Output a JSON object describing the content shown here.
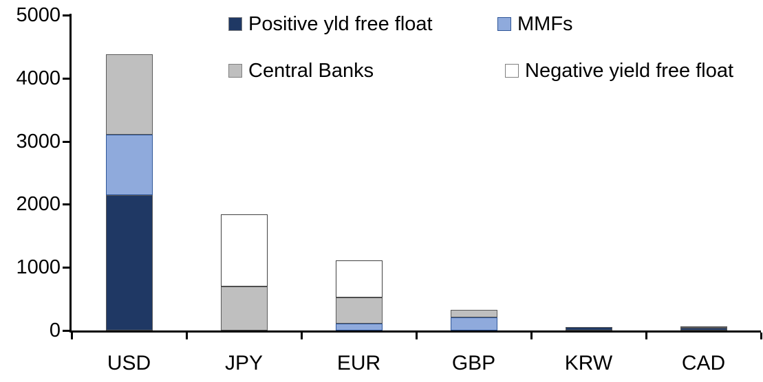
{
  "chart_data": {
    "type": "bar",
    "stacked": true,
    "title": "",
    "xlabel": "",
    "ylabel": "",
    "categories": [
      "USD",
      "JPY",
      "EUR",
      "GBP",
      "KRW",
      "CAD"
    ],
    "series": [
      {
        "name": "Positive yld free float",
        "color": "#1F3864",
        "border_color": "#595959",
        "values": [
          2150,
          0,
          0,
          0,
          50,
          40
        ]
      },
      {
        "name": "MMFs",
        "color": "#8FAADC",
        "border_color": "#2E5597",
        "values": [
          950,
          0,
          110,
          210,
          0,
          0
        ]
      },
      {
        "name": "Central Banks",
        "color": "#BFBFBF",
        "border_color": "#595959",
        "values": [
          1280,
          700,
          410,
          120,
          0,
          30
        ]
      },
      {
        "name": "Negative yield free float",
        "color": "#FFFFFF",
        "border_color": "#404040",
        "values": [
          0,
          1140,
          590,
          0,
          0,
          0
        ]
      }
    ],
    "ylim": [
      0,
      5000
    ],
    "yticks": [
      0,
      1000,
      2000,
      3000,
      4000,
      5000
    ],
    "grid": false,
    "legend_position": "top",
    "legend_rows": [
      [
        0,
        1
      ],
      [
        2,
        3
      ]
    ],
    "axis_color": "#000000",
    "text_color": "#000000",
    "background_color": "#FFFFFF"
  }
}
